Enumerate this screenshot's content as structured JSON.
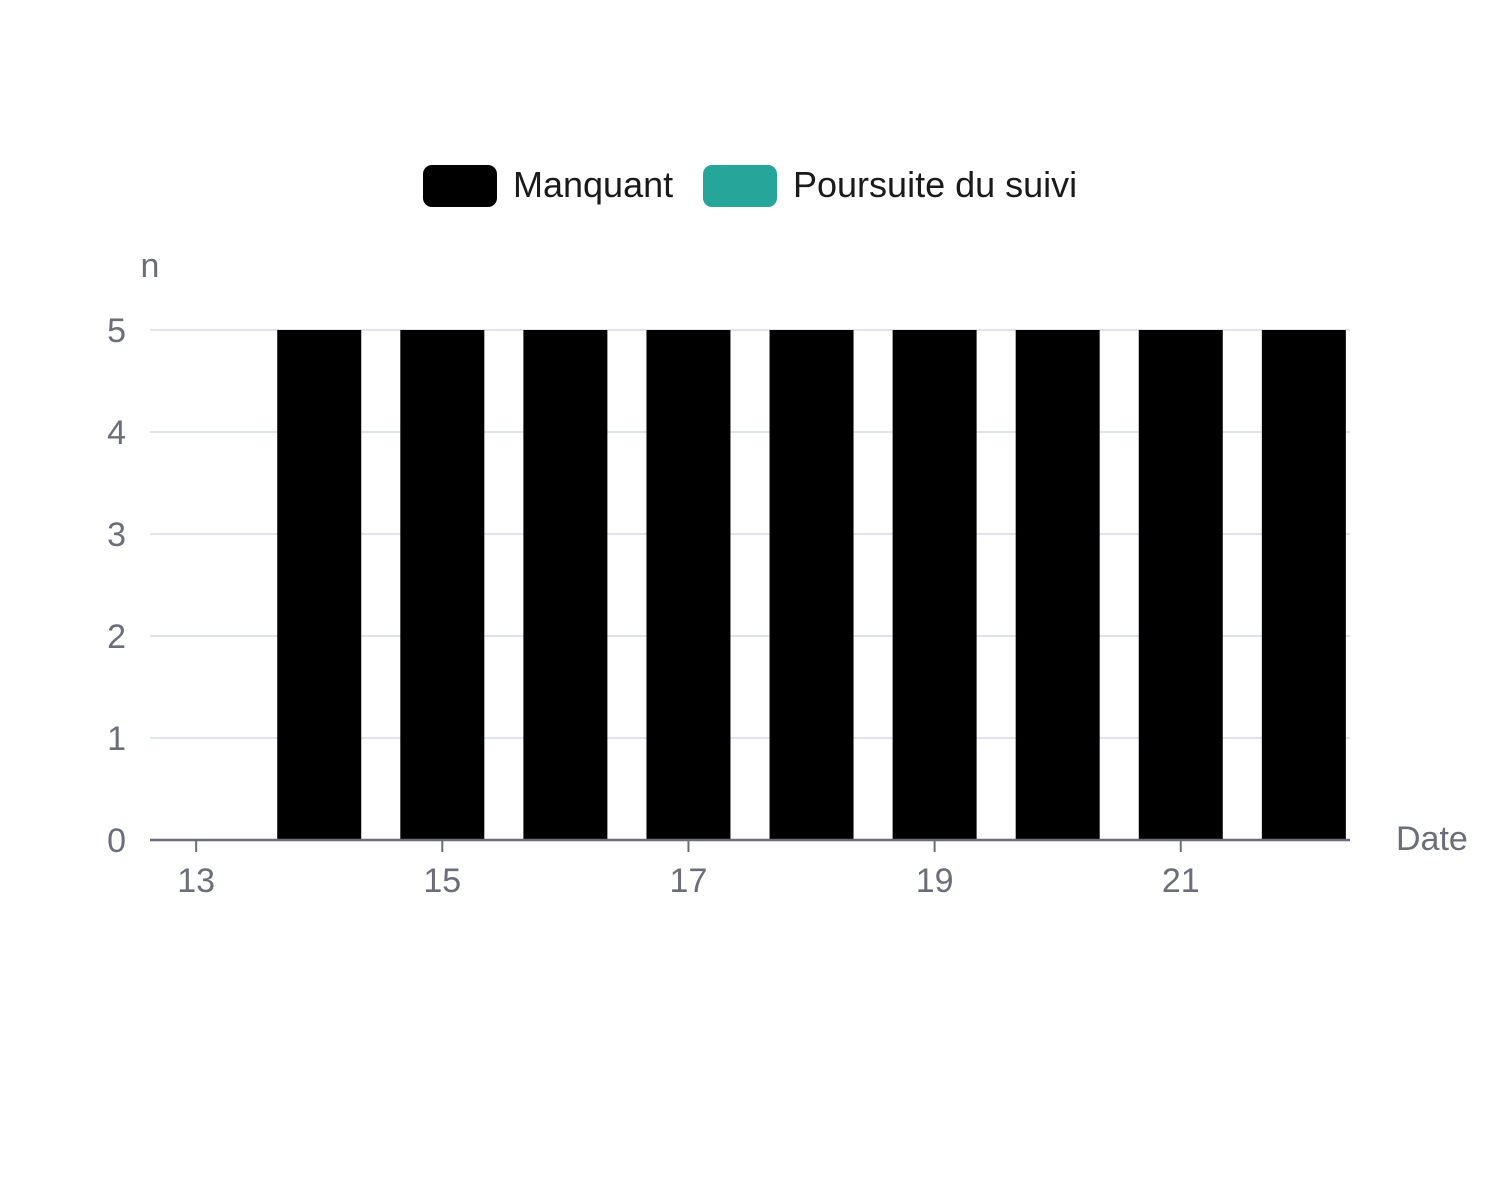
{
  "chart_data": {
    "type": "bar",
    "xlabel": "Date",
    "ylabel": "n",
    "x": [
      13,
      14,
      15,
      16,
      17,
      18,
      19,
      20,
      21,
      22
    ],
    "xticks": [
      13,
      15,
      17,
      19,
      21
    ],
    "yticks": [
      0,
      1,
      2,
      3,
      4,
      5
    ],
    "ylim": [
      0,
      5
    ],
    "xlim": [
      12.625,
      22.375
    ],
    "grid": true,
    "legend_position": "top-center",
    "series": [
      {
        "name": "Manquant",
        "color": "#000000",
        "values": [
          0,
          5,
          5,
          5,
          5,
          5,
          5,
          5,
          5,
          5
        ]
      },
      {
        "name": "Poursuite du suivi",
        "color": "#26a69a",
        "values": [
          0,
          0,
          0,
          0,
          0,
          0,
          0,
          0,
          0,
          0
        ]
      }
    ],
    "colors": {
      "grid": "#dfe3f0",
      "axis": "#6b6d7a",
      "tick_text": "#6b6d7a"
    }
  }
}
